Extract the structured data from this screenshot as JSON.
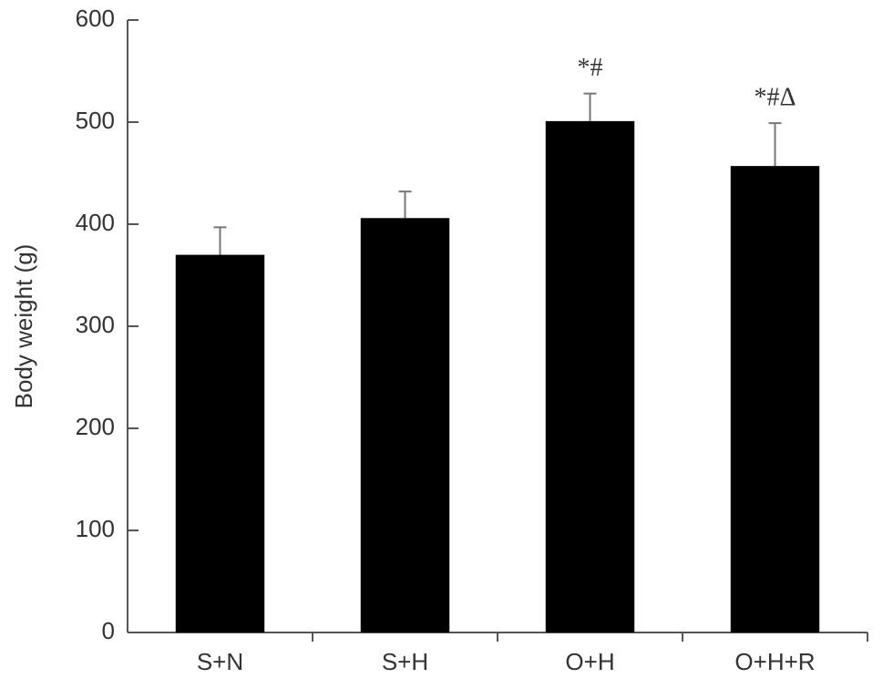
{
  "chart_data": {
    "type": "bar",
    "ylabel": "Body weight (g)",
    "categories": [
      "S+N",
      "S+H",
      "O+H",
      "O+H+R"
    ],
    "values": [
      370,
      406,
      501,
      457
    ],
    "errors": [
      27,
      26,
      27,
      42
    ],
    "annotations": [
      null,
      null,
      "*#",
      "*#Δ"
    ],
    "color": "#000000",
    "ylim": [
      0,
      600
    ],
    "yticks": [
      0,
      100,
      200,
      300,
      400,
      500,
      600
    ],
    "grid": false
  }
}
